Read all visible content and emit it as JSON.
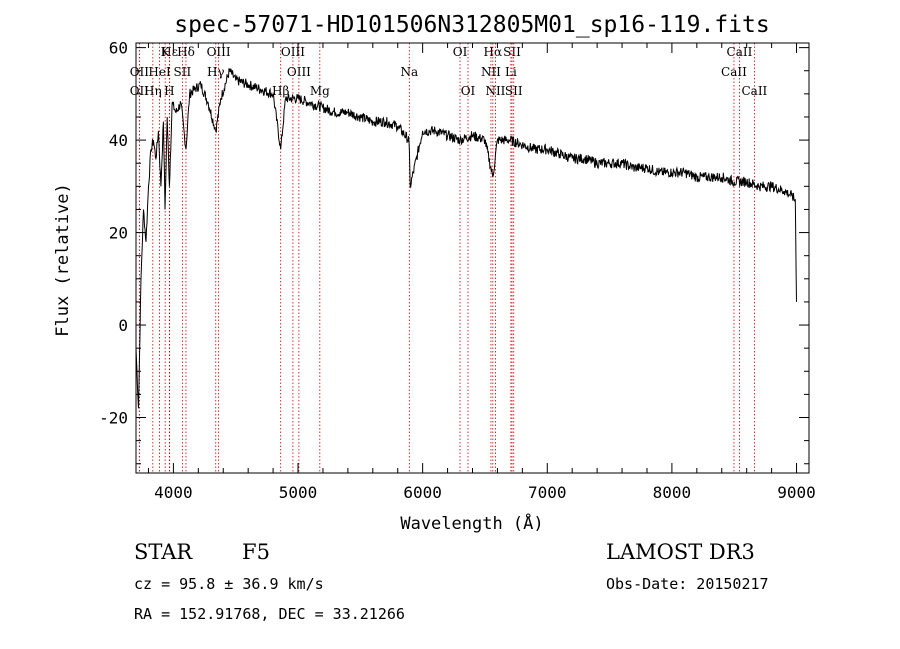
{
  "chart_data": {
    "type": "line",
    "title": "spec-57071-HD101506N312805M01_sp16-119.fits",
    "xlabel": "Wavelength (Å)",
    "ylabel": "Flux (relative)",
    "xlim": [
      3700,
      9100
    ],
    "ylim": [
      -32,
      61
    ],
    "xticks": [
      4000,
      5000,
      6000,
      7000,
      8000,
      9000
    ],
    "yticks": [
      -20,
      0,
      20,
      40,
      60
    ],
    "series": [
      {
        "name": "flux",
        "x": [
          3700,
          3720,
          3740,
          3760,
          3780,
          3800,
          3820,
          3840,
          3860,
          3880,
          3900,
          3920,
          3933,
          3950,
          3968,
          3990,
          4020,
          4060,
          4101,
          4130,
          4170,
          4220,
          4280,
          4340,
          4380,
          4450,
          4500,
          4600,
          4700,
          4800,
          4861,
          4900,
          5000,
          5100,
          5200,
          5300,
          5400,
          5500,
          5600,
          5700,
          5800,
          5890,
          5900,
          6000,
          6100,
          6200,
          6300,
          6400,
          6500,
          6563,
          6600,
          6700,
          6800,
          6900,
          7000,
          7100,
          7200,
          7300,
          7400,
          7500,
          7600,
          7700,
          7800,
          7900,
          8000,
          8100,
          8200,
          8300,
          8400,
          8500,
          8600,
          8700,
          8800,
          8900,
          8960,
          8990,
          9000
        ],
        "y": [
          -5,
          -18,
          10,
          25,
          18,
          30,
          38,
          40,
          36,
          42,
          30,
          44,
          25,
          45,
          30,
          48,
          46,
          48,
          38,
          50,
          51,
          52,
          48,
          42,
          49,
          55,
          53,
          52,
          51,
          50,
          38,
          49,
          49,
          48,
          47,
          46,
          46,
          45,
          44,
          44,
          43,
          40,
          30,
          42,
          42,
          41,
          40,
          41,
          40,
          32,
          40,
          40,
          39,
          38,
          38,
          37,
          36,
          36,
          35,
          35,
          35,
          34,
          34,
          33,
          33,
          33,
          32,
          32,
          32,
          31,
          31,
          30,
          30,
          29,
          28,
          27,
          5
        ]
      }
    ],
    "line_markers": [
      {
        "label": "Hε",
        "wl": 3970,
        "row": 1
      },
      {
        "label": "Hδ",
        "wl": 4101,
        "row": 1
      },
      {
        "label": "K",
        "wl": 3934,
        "row": 1
      },
      {
        "label": "OII",
        "wl": 3727,
        "row": 2
      },
      {
        "label": "HeI",
        "wl": 3889,
        "row": 2
      },
      {
        "label": "SII",
        "wl": 4072,
        "row": 2
      },
      {
        "label": "OII",
        "wl": 3727,
        "row": 3
      },
      {
        "label": "Hη",
        "wl": 3835,
        "row": 3
      },
      {
        "label": "H",
        "wl": 3968,
        "row": 3
      },
      {
        "label": "OIII",
        "wl": 4363,
        "row": 1
      },
      {
        "label": "Hγ",
        "wl": 4340,
        "row": 2
      },
      {
        "label": "Hβ",
        "wl": 4861,
        "row": 3
      },
      {
        "label": "OIII",
        "wl": 4959,
        "row": 1
      },
      {
        "label": "OIII",
        "wl": 5007,
        "row": 2
      },
      {
        "label": "Mg",
        "wl": 5175,
        "row": 3
      },
      {
        "label": "Na",
        "wl": 5893,
        "row": 2
      },
      {
        "label": "OI",
        "wl": 6300,
        "row": 1
      },
      {
        "label": "OI",
        "wl": 6364,
        "row": 3
      },
      {
        "label": "Hα",
        "wl": 6563,
        "row": 1
      },
      {
        "label": "NII",
        "wl": 6548,
        "row": 2
      },
      {
        "label": "NII",
        "wl": 6584,
        "row": 3
      },
      {
        "label": "SII",
        "wl": 6717,
        "row": 1
      },
      {
        "label": "Li",
        "wl": 6708,
        "row": 2
      },
      {
        "label": "SII",
        "wl": 6731,
        "row": 3
      },
      {
        "label": "CaII",
        "wl": 8542,
        "row": 1
      },
      {
        "label": "CaII",
        "wl": 8498,
        "row": 2
      },
      {
        "label": "CaII",
        "wl": 8662,
        "row": 3
      }
    ],
    "grid": false,
    "legend": "none"
  },
  "info": {
    "object_class": "STAR",
    "subclass": "F5",
    "survey": "LAMOST DR3",
    "cz": "cz = 95.8 ± 36.9 km/s",
    "obs_date": "Obs-Date: 20150217",
    "coords": "RA = 152.91768, DEC =  33.21266"
  },
  "colors": {
    "axis": "#000000",
    "spectrum": "#000000",
    "line_marker": "#cc0000"
  }
}
